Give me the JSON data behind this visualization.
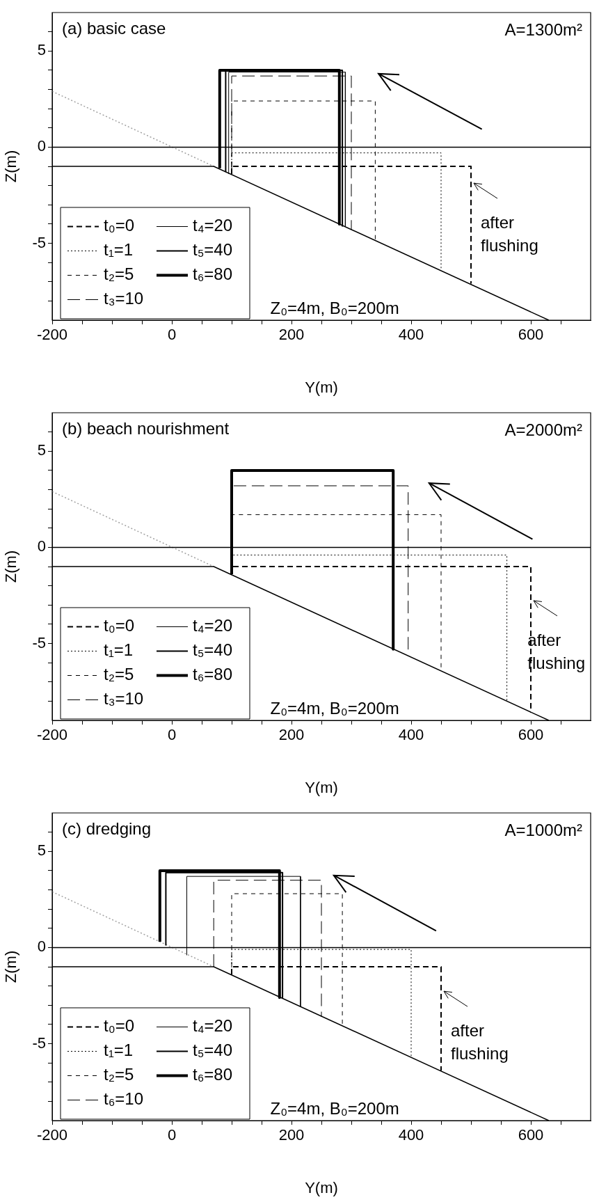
{
  "chart_data": [
    {
      "type": "line",
      "title": "(a) basic case",
      "xlabel": "Y(m)",
      "ylabel": "Z(m)",
      "xlim": [
        -200,
        700
      ],
      "ylim": [
        -9,
        7
      ],
      "xticks": [
        -200,
        {
          "value": -150,
          "label": null
        },
        {
          "value": -100,
          "label": null
        },
        {
          "value": -50,
          "label": null
        },
        0,
        {
          "value": 50,
          "label": null
        },
        {
          "value": 100,
          "label": null
        },
        {
          "value": 150,
          "label": null
        },
        200,
        {
          "value": 250,
          "label": null
        },
        {
          "value": 300,
          "label": null
        },
        {
          "value": 350,
          "label": null
        },
        400,
        {
          "value": 450,
          "label": null
        },
        {
          "value": 500,
          "label": null
        },
        {
          "value": 550,
          "label": null
        },
        600,
        {
          "value": 650,
          "label": null
        }
      ],
      "yticks": [
        {
          "value": -8,
          "label": null
        },
        {
          "value": -7,
          "label": null
        },
        {
          "value": -6,
          "label": null
        },
        -5,
        {
          "value": -4,
          "label": null
        },
        {
          "value": -3,
          "label": null
        },
        {
          "value": -2,
          "label": null
        },
        {
          "value": -1,
          "label": null
        },
        0,
        {
          "value": 1,
          "label": null
        },
        {
          "value": 2,
          "label": null
        },
        {
          "value": 3,
          "label": null
        },
        {
          "value": 4,
          "label": null
        },
        5,
        {
          "value": 6,
          "label": null
        }
      ],
      "legend": "bottom left",
      "annotations": [
        "A=1300m²",
        "Z₀=4m, B₀=200m",
        {
          "text": "after flushing",
          "x": 500,
          "y": -1.8
        }
      ],
      "series": [
        {
          "name": "t₀=0",
          "color": "#000000",
          "line_style": "dashed",
          "x": [
            100,
            100,
            500,
            500
          ],
          "values": [
            -1.4,
            -1,
            -1,
            -7.1
          ]
        },
        {
          "name": "t₁=1",
          "color": "#000000",
          "line_style": "dotted",
          "x": [
            100,
            100,
            450,
            450
          ],
          "values": [
            -1.4,
            -0.3,
            -0.3,
            -6.4
          ]
        },
        {
          "name": "t₂=5",
          "color": "#000000",
          "line_style": "dashed",
          "x": [
            100,
            100,
            340,
            340
          ],
          "values": [
            -1.4,
            2.4,
            2.4,
            -4.9
          ]
        },
        {
          "name": "t₃=10",
          "color": "#000000",
          "line_style": "dashed",
          "x": [
            100,
            100,
            300,
            300
          ],
          "values": [
            -1.4,
            3.7,
            3.7,
            -4.3
          ]
        },
        {
          "name": "t₄=20",
          "color": "#000000",
          "line_style": "solid",
          "x": [
            95,
            95,
            290,
            290
          ],
          "values": [
            -1.4,
            3.9,
            3.9,
            -4.1
          ]
        },
        {
          "name": "t₅=40",
          "color": "#000000",
          "line_style": "solid",
          "x": [
            90,
            90,
            285,
            285
          ],
          "values": [
            -1.3,
            4,
            4,
            -4.1
          ]
        },
        {
          "name": "t₆=80",
          "color": "#000000",
          "line_style": "solid",
          "x": [
            80,
            80,
            280,
            280
          ],
          "values": [
            -1.1,
            4,
            4,
            -4
          ]
        },
        {
          "color": "#000000",
          "line_style": "solid",
          "x": [
            -200,
            700
          ],
          "values": [
            0,
            0
          ]
        },
        {
          "color": "#000000",
          "line_style": "solid",
          "x": [
            -200,
            70,
            630
          ],
          "values": [
            -1,
            -1,
            -9
          ]
        },
        {
          "color": "#a0a0a0",
          "line_style": "dotted",
          "x": [
            -200,
            70
          ],
          "values": [
            2.9,
            -1
          ]
        }
      ]
    },
    {
      "type": "line",
      "title": "(b) beach nourishment",
      "xlabel": "Y(m)",
      "ylabel": "Z(m)",
      "xlim": [
        -200,
        700
      ],
      "ylim": [
        -9,
        7
      ],
      "xticks": [
        -200,
        {
          "value": -150,
          "label": null
        },
        {
          "value": -100,
          "label": null
        },
        {
          "value": -50,
          "label": null
        },
        0,
        {
          "value": 50,
          "label": null
        },
        {
          "value": 100,
          "label": null
        },
        {
          "value": 150,
          "label": null
        },
        200,
        {
          "value": 250,
          "label": null
        },
        {
          "value": 300,
          "label": null
        },
        {
          "value": 350,
          "label": null
        },
        400,
        {
          "value": 450,
          "label": null
        },
        {
          "value": 500,
          "label": null
        },
        {
          "value": 550,
          "label": null
        },
        600,
        {
          "value": 650,
          "label": null
        }
      ],
      "yticks": [
        {
          "value": -8,
          "label": null
        },
        {
          "value": -7,
          "label": null
        },
        {
          "value": -6,
          "label": null
        },
        -5,
        {
          "value": -4,
          "label": null
        },
        {
          "value": -3,
          "label": null
        },
        {
          "value": -2,
          "label": null
        },
        {
          "value": -1,
          "label": null
        },
        0,
        {
          "value": 1,
          "label": null
        },
        {
          "value": 2,
          "label": null
        },
        {
          "value": 3,
          "label": null
        },
        {
          "value": 4,
          "label": null
        },
        5,
        {
          "value": 6,
          "label": null
        }
      ],
      "legend": "bottom left",
      "annotations": [
        "A=2000m²",
        "Z₀=4m, B₀=200m",
        {
          "text": "after flushing",
          "x": 600,
          "y": -2.7
        }
      ],
      "series": [
        {
          "name": "t₀=0",
          "color": "#000000",
          "line_style": "dashed",
          "x": [
            100,
            100,
            600,
            600
          ],
          "values": [
            -1.4,
            -1,
            -1,
            -8.6
          ]
        },
        {
          "name": "t₁=1",
          "color": "#000000",
          "line_style": "dotted",
          "x": [
            100,
            100,
            560,
            560
          ],
          "values": [
            -1.4,
            -0.4,
            -0.4,
            -8
          ]
        },
        {
          "name": "t₂=5",
          "color": "#000000",
          "line_style": "dashed",
          "x": [
            100,
            100,
            450,
            450
          ],
          "values": [
            -1.4,
            1.7,
            1.7,
            -6.4
          ]
        },
        {
          "name": "t₃=10",
          "color": "#000000",
          "line_style": "dashed",
          "x": [
            100,
            100,
            395,
            395
          ],
          "values": [
            -1.4,
            3.2,
            3.2,
            -5.6
          ]
        },
        {
          "name": "t₄=20",
          "color": "#000000",
          "line_style": "solid",
          "values": [
            null
          ]
        },
        {
          "name": "t₅=40",
          "color": "#000000",
          "line_style": "solid",
          "values": [
            null
          ]
        },
        {
          "name": "t₆=80",
          "color": "#000000",
          "line_style": "solid",
          "x": [
            100,
            100,
            370,
            370
          ],
          "values": [
            -1.4,
            4,
            4,
            -5.3
          ]
        },
        {
          "color": "#000000",
          "line_style": "solid",
          "x": [
            -200,
            700
          ],
          "values": [
            0,
            0
          ]
        },
        {
          "color": "#000000",
          "line_style": "solid",
          "x": [
            -200,
            70,
            630
          ],
          "values": [
            -1,
            -1,
            -9
          ]
        },
        {
          "color": "#a0a0a0",
          "line_style": "dotted",
          "x": [
            -200,
            70
          ],
          "values": [
            2.9,
            -1
          ]
        }
      ]
    },
    {
      "type": "line",
      "title": "(c) dredging",
      "xlabel": "Y(m)",
      "ylabel": "Z(m)",
      "xlim": [
        -200,
        700
      ],
      "ylim": [
        -9,
        7
      ],
      "xticks": [
        -200,
        {
          "value": -150,
          "label": null
        },
        {
          "value": -100,
          "label": null
        },
        {
          "value": -50,
          "label": null
        },
        0,
        {
          "value": 50,
          "label": null
        },
        {
          "value": 100,
          "label": null
        },
        {
          "value": 150,
          "label": null
        },
        200,
        {
          "value": 250,
          "label": null
        },
        {
          "value": 300,
          "label": null
        },
        {
          "value": 350,
          "label": null
        },
        400,
        {
          "value": 450,
          "label": null
        },
        {
          "value": 500,
          "label": null
        },
        {
          "value": 550,
          "label": null
        },
        600,
        {
          "value": 650,
          "label": null
        }
      ],
      "yticks": [
        {
          "value": -8,
          "label": null
        },
        {
          "value": -7,
          "label": null
        },
        {
          "value": -6,
          "label": null
        },
        -5,
        {
          "value": -4,
          "label": null
        },
        {
          "value": -3,
          "label": null
        },
        {
          "value": -2,
          "label": null
        },
        {
          "value": -1,
          "label": null
        },
        0,
        {
          "value": 1,
          "label": null
        },
        {
          "value": 2,
          "label": null
        },
        {
          "value": 3,
          "label": null
        },
        {
          "value": 4,
          "label": null
        },
        5,
        {
          "value": 6,
          "label": null
        }
      ],
      "legend": "bottom left",
      "annotations": [
        "A=1000m²",
        "Z₀=4m, B₀=200m",
        {
          "text": "after flushing",
          "x": 450,
          "y": -2.2
        }
      ],
      "series": [
        {
          "name": "t₀=0",
          "color": "#000000",
          "line_style": "dashed",
          "x": [
            100,
            100,
            450,
            450
          ],
          "values": [
            -1.4,
            -1,
            -1,
            -6.4
          ]
        },
        {
          "name": "t₁=1",
          "color": "#000000",
          "line_style": "dotted",
          "x": [
            100,
            100,
            400,
            400
          ],
          "values": [
            -1.4,
            -0.1,
            -0.1,
            -5.7
          ]
        },
        {
          "name": "t₂=5",
          "color": "#000000",
          "line_style": "dashed",
          "x": [
            100,
            100,
            285,
            285
          ],
          "values": [
            -1.4,
            2.8,
            2.8,
            -4.1
          ]
        },
        {
          "name": "t₆=10",
          "color": "#000000",
          "line_style": "dashed",
          "x": [
            70,
            70,
            250,
            250
          ],
          "values": [
            -1,
            3.5,
            3.5,
            -3.6
          ]
        },
        {
          "name": "t₄=20",
          "color": "#000000",
          "line_style": "solid",
          "x": [
            25,
            25,
            215,
            215
          ],
          "values": [
            -0.4,
            3.7,
            3.7,
            -3.1
          ]
        },
        {
          "name": "t₅=40",
          "color": "#000000",
          "line_style": "solid",
          "x": [
            -10,
            -10,
            185,
            185
          ],
          "values": [
            0.1,
            3.9,
            3.9,
            -2.6
          ]
        },
        {
          "name": "t₆=80",
          "color": "#000000",
          "line_style": "solid",
          "x": [
            -20,
            -20,
            180,
            180
          ],
          "values": [
            0.3,
            4,
            4,
            -2.6
          ]
        },
        {
          "color": "#000000",
          "line_style": "solid",
          "x": [
            -200,
            700
          ],
          "values": [
            0,
            0
          ]
        },
        {
          "color": "#000000",
          "line_style": "solid",
          "x": [
            -200,
            70,
            630
          ],
          "values": [
            -1,
            -1,
            -9
          ]
        },
        {
          "color": "#a0a0a0",
          "line_style": "dotted",
          "x": [
            -200,
            70
          ],
          "values": [
            2.9,
            -1
          ]
        }
      ]
    }
  ]
}
